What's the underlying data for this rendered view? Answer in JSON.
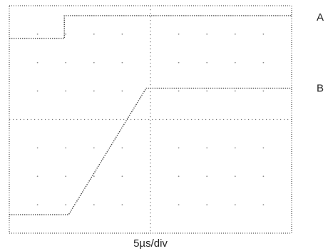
{
  "chart_data": {
    "type": "line",
    "instrument": "oscilloscope",
    "grid": true,
    "divisions": {
      "x": 10,
      "y": 8
    },
    "xlim": [
      0,
      10
    ],
    "ylim": [
      0,
      8
    ],
    "x_units": "divisions",
    "y_units": "divisions",
    "xlabel": "5µs/div",
    "series": [
      {
        "name": "A",
        "style": "dotted",
        "points": [
          [
            0,
            6.85
          ],
          [
            1.95,
            6.85
          ],
          [
            1.95,
            7.65
          ],
          [
            10,
            7.65
          ]
        ]
      },
      {
        "name": "B",
        "style": "dotted",
        "points": [
          [
            0,
            0.65
          ],
          [
            2.1,
            0.65
          ],
          [
            4.85,
            5.1
          ],
          [
            10,
            5.1
          ]
        ]
      }
    ],
    "legend": "right"
  },
  "colors": {
    "trace": "#444444",
    "grid": "#8a8a8a",
    "frame": "#555555"
  }
}
